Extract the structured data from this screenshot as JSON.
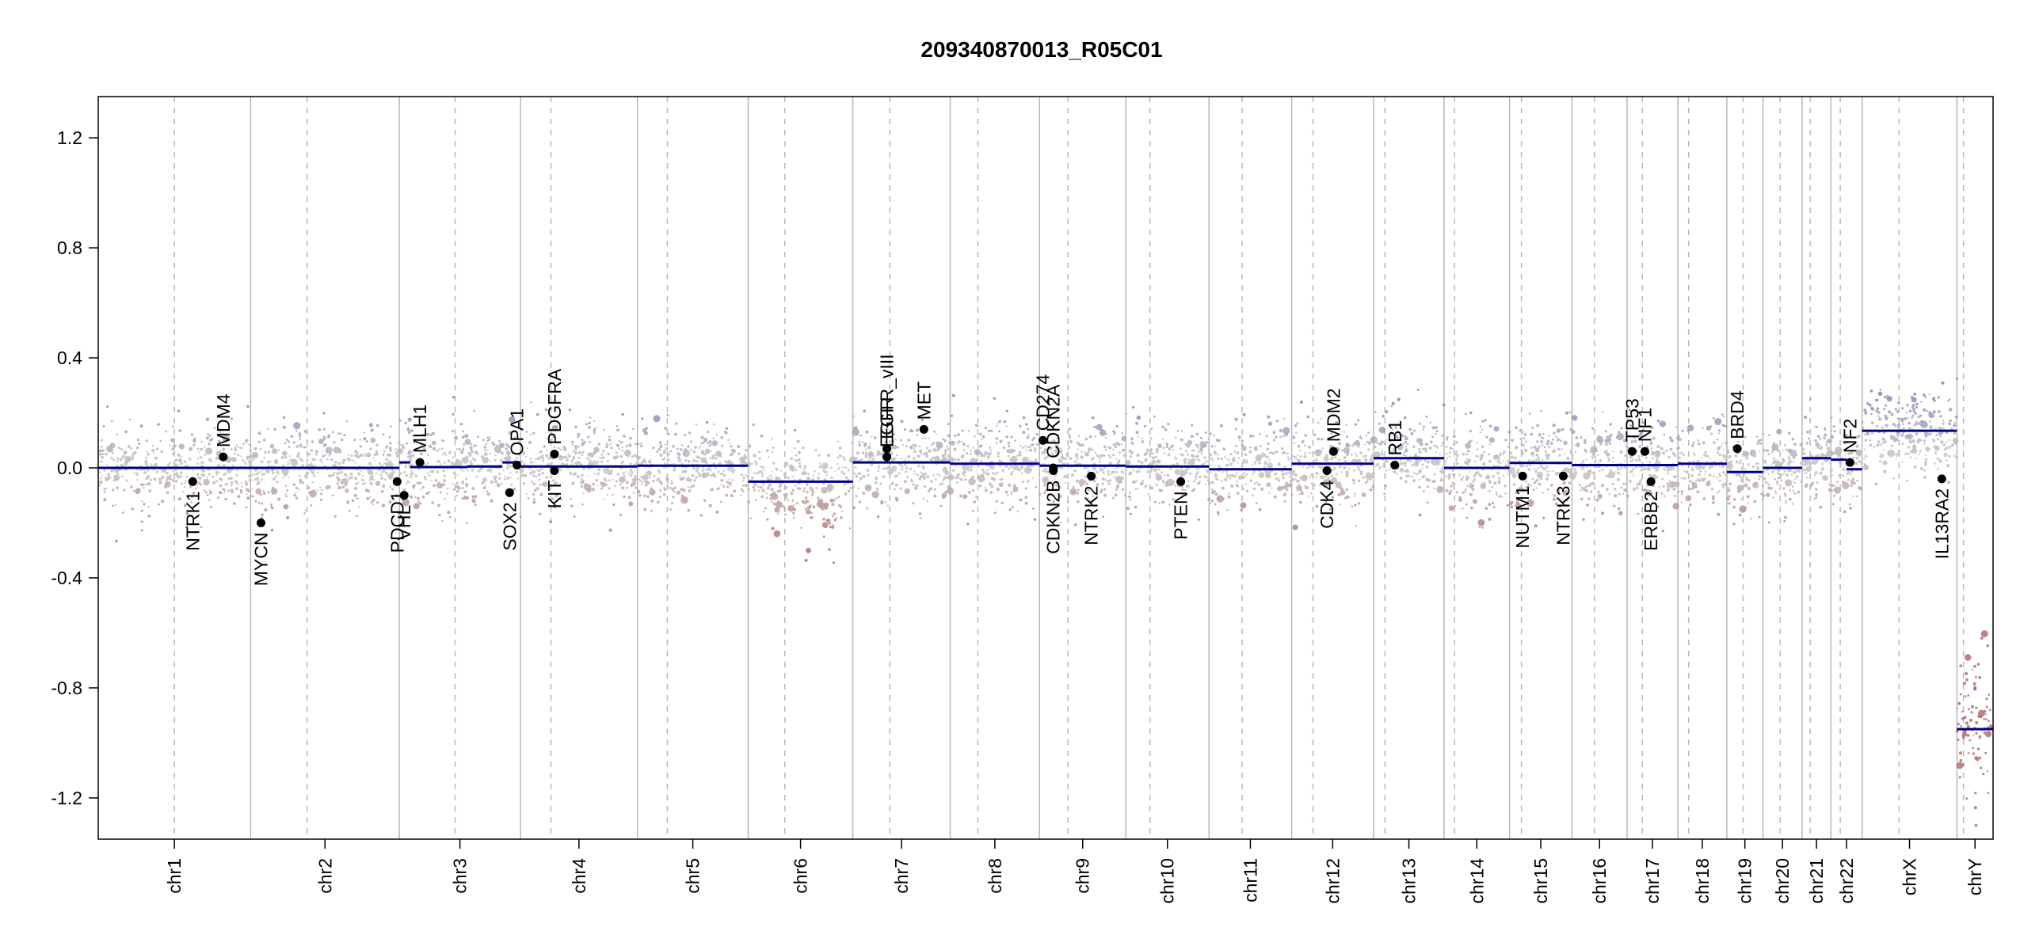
{
  "chart_data": {
    "type": "scatter",
    "title": "209340870013_R05C01",
    "xlabel": "",
    "ylabel": "",
    "ylim": [
      -1.35,
      1.35
    ],
    "y_ticks": [
      {
        "value": -1.2,
        "label": "-1.2"
      },
      {
        "value": -0.8,
        "label": "-0.8"
      },
      {
        "value": -0.4,
        "label": "-0.4"
      },
      {
        "value": 0.0,
        "label": "0.0"
      },
      {
        "value": 0.4,
        "label": "0.4"
      },
      {
        "value": 0.8,
        "label": "0.8"
      },
      {
        "value": 1.2,
        "label": "1.2"
      }
    ],
    "colors": {
      "gain": "#8080b0",
      "loss": "#b07070",
      "neutral": "#c8c8c8",
      "segment": "#00008b",
      "gene": "#000000",
      "chrom_line": "#b8b8b8",
      "centromere_line": "#b8b8b8"
    },
    "chromosomes": [
      {
        "name": "chr1",
        "size": 249,
        "centromere": 0.5,
        "segments": [
          {
            "from": 0,
            "to": 1,
            "value": 0.0
          }
        ],
        "noise_center": 0.0
      },
      {
        "name": "chr2",
        "size": 243,
        "centromere": 0.38,
        "segments": [
          {
            "from": 0,
            "to": 1,
            "value": 0.0
          }
        ],
        "noise_center": 0.0
      },
      {
        "name": "chr3",
        "size": 198,
        "centromere": 0.46,
        "segments": [
          {
            "from": 0,
            "to": 0.09,
            "value": 0.02
          },
          {
            "from": 0.09,
            "to": 0.56,
            "value": 0.003
          },
          {
            "from": 0.56,
            "to": 0.85,
            "value": 0.005
          },
          {
            "from": 0.85,
            "to": 1,
            "value": 0.02
          }
        ],
        "noise_center": 0.0
      },
      {
        "name": "chr4",
        "size": 191,
        "centromere": 0.26,
        "segments": [
          {
            "from": 0,
            "to": 1,
            "value": 0.005
          }
        ],
        "noise_center": 0.0
      },
      {
        "name": "chr5",
        "size": 181,
        "centromere": 0.27,
        "segments": [
          {
            "from": 0,
            "to": 1,
            "value": 0.008
          }
        ],
        "noise_center": 0.0
      },
      {
        "name": "chr6",
        "size": 171,
        "centromere": 0.35,
        "segments": [
          {
            "from": 0,
            "to": 1,
            "value": -0.05
          }
        ],
        "noise_center": -0.05
      },
      {
        "name": "chr7",
        "size": 159,
        "centromere": 0.38,
        "segments": [
          {
            "from": 0,
            "to": 1,
            "value": 0.02
          }
        ],
        "noise_center": 0.02
      },
      {
        "name": "chr8",
        "size": 146,
        "centromere": 0.31,
        "segments": [
          {
            "from": 0,
            "to": 1,
            "value": 0.015
          }
        ],
        "noise_center": 0.015
      },
      {
        "name": "chr9",
        "size": 141,
        "centromere": 0.33,
        "segments": [
          {
            "from": 0,
            "to": 1,
            "value": 0.008
          }
        ],
        "noise_center": 0.0
      },
      {
        "name": "chr10",
        "size": 136,
        "centromere": 0.29,
        "segments": [
          {
            "from": 0,
            "to": 1,
            "value": 0.005
          }
        ],
        "noise_center": 0.0
      },
      {
        "name": "chr11",
        "size": 135,
        "centromere": 0.4,
        "segments": [
          {
            "from": 0,
            "to": 1,
            "value": -0.005
          }
        ],
        "noise_center": 0.0
      },
      {
        "name": "chr12",
        "size": 134,
        "centromere": 0.26,
        "segments": [
          {
            "from": 0,
            "to": 1,
            "value": 0.015
          }
        ],
        "noise_center": 0.01
      },
      {
        "name": "chr13",
        "size": 115,
        "centromere": 0.16,
        "segments": [
          {
            "from": 0,
            "to": 1,
            "value": 0.035
          }
        ],
        "noise_center": 0.02
      },
      {
        "name": "chr14",
        "size": 107,
        "centromere": 0.16,
        "segments": [
          {
            "from": 0,
            "to": 1,
            "value": 0.0
          }
        ],
        "noise_center": 0.0
      },
      {
        "name": "chr15",
        "size": 102,
        "centromere": 0.19,
        "segments": [
          {
            "from": 0,
            "to": 1,
            "value": 0.018
          }
        ],
        "noise_center": 0.01
      },
      {
        "name": "chr16",
        "size": 90,
        "centromere": 0.41,
        "segments": [
          {
            "from": 0,
            "to": 1,
            "value": 0.01
          }
        ],
        "noise_center": 0.0
      },
      {
        "name": "chr17",
        "size": 83,
        "centromere": 0.3,
        "segments": [
          {
            "from": 0,
            "to": 1,
            "value": 0.01
          }
        ],
        "noise_center": 0.01
      },
      {
        "name": "chr18",
        "size": 80,
        "centromere": 0.22,
        "segments": [
          {
            "from": 0,
            "to": 1,
            "value": 0.015
          }
        ],
        "noise_center": 0.0
      },
      {
        "name": "chr19",
        "size": 59,
        "centromere": 0.45,
        "segments": [
          {
            "from": 0,
            "to": 1,
            "value": -0.015
          }
        ],
        "noise_center": -0.01
      },
      {
        "name": "chr20",
        "size": 64,
        "centromere": 0.44,
        "segments": [
          {
            "from": 0,
            "to": 1,
            "value": 0.0
          }
        ],
        "noise_center": 0.0
      },
      {
        "name": "chr21",
        "size": 47,
        "centromere": 0.28,
        "segments": [
          {
            "from": 0,
            "to": 1,
            "value": 0.035
          }
        ],
        "noise_center": 0.02
      },
      {
        "name": "chr22",
        "size": 51,
        "centromere": 0.3,
        "segments": [
          {
            "from": 0,
            "to": 0.5,
            "value": 0.03
          },
          {
            "from": 0.5,
            "to": 1,
            "value": -0.005
          }
        ],
        "noise_center": 0.0
      },
      {
        "name": "chrX",
        "size": 155,
        "centromere": 0.39,
        "segments": [
          {
            "from": 0,
            "to": 1,
            "value": 0.135
          }
        ],
        "noise_center": 0.14
      },
      {
        "name": "chrY",
        "size": 59,
        "centromere": 0.18,
        "segments": [
          {
            "from": 0,
            "to": 1,
            "value": -0.95
          }
        ],
        "noise_center": -0.95
      }
    ],
    "genes": [
      {
        "name": "NTRK1",
        "chrom": "chr1",
        "pos": 0.62,
        "value": -0.05,
        "label_side": "below"
      },
      {
        "name": "MDM4",
        "chrom": "chr1",
        "pos": 0.82,
        "value": 0.04,
        "label_side": "above"
      },
      {
        "name": "MYCN",
        "chrom": "chr2",
        "pos": 0.07,
        "value": -0.2,
        "label_side": "below"
      },
      {
        "name": "PDCD1",
        "chrom": "chr2",
        "pos": 0.985,
        "value": -0.05,
        "label_side": "below"
      },
      {
        "name": "VHL",
        "chrom": "chr3",
        "pos": 0.04,
        "value": -0.1,
        "label_side": "below"
      },
      {
        "name": "MLH1",
        "chrom": "chr3",
        "pos": 0.17,
        "value": 0.02,
        "label_side": "above"
      },
      {
        "name": "SOX2",
        "chrom": "chr3",
        "pos": 0.91,
        "value": -0.09,
        "label_side": "below"
      },
      {
        "name": "OPA1",
        "chrom": "chr3",
        "pos": 0.97,
        "value": 0.01,
        "label_side": "above"
      },
      {
        "name": "KIT",
        "chrom": "chr4",
        "pos": 0.29,
        "value": -0.01,
        "label_side": "below"
      },
      {
        "name": "PDGFRA",
        "chrom": "chr4",
        "pos": 0.29,
        "value": 0.05,
        "label_side": "above"
      },
      {
        "name": "EGFR_vIII",
        "chrom": "chr7",
        "pos": 0.35,
        "value": 0.07,
        "label_side": "above"
      },
      {
        "name": "EGFR",
        "chrom": "chr7",
        "pos": 0.35,
        "value": 0.04,
        "label_side": "above"
      },
      {
        "name": "MET",
        "chrom": "chr7",
        "pos": 0.73,
        "value": 0.14,
        "label_side": "above"
      },
      {
        "name": "CD274",
        "chrom": "chr9",
        "pos": 0.04,
        "value": 0.1,
        "label_side": "above"
      },
      {
        "name": "CDKN2A",
        "chrom": "chr9",
        "pos": 0.16,
        "value": 0.0,
        "label_side": "above"
      },
      {
        "name": "CDKN2B",
        "chrom": "chr9",
        "pos": 0.16,
        "value": -0.01,
        "label_side": "below"
      },
      {
        "name": "NTRK2",
        "chrom": "chr9",
        "pos": 0.6,
        "value": -0.03,
        "label_side": "below"
      },
      {
        "name": "PTEN",
        "chrom": "chr10",
        "pos": 0.66,
        "value": -0.05,
        "label_side": "below"
      },
      {
        "name": "CDK4",
        "chrom": "chr12",
        "pos": 0.43,
        "value": -0.01,
        "label_side": "below"
      },
      {
        "name": "MDM2",
        "chrom": "chr12",
        "pos": 0.51,
        "value": 0.06,
        "label_side": "above"
      },
      {
        "name": "RB1",
        "chrom": "chr13",
        "pos": 0.3,
        "value": 0.01,
        "label_side": "above"
      },
      {
        "name": "NUTM1",
        "chrom": "chr15",
        "pos": 0.21,
        "value": -0.03,
        "label_side": "below"
      },
      {
        "name": "NTRK3",
        "chrom": "chr15",
        "pos": 0.86,
        "value": -0.03,
        "label_side": "below"
      },
      {
        "name": "TP53",
        "chrom": "chr17",
        "pos": 0.1,
        "value": 0.06,
        "label_side": "above"
      },
      {
        "name": "NF1",
        "chrom": "chr17",
        "pos": 0.35,
        "value": 0.06,
        "label_side": "above"
      },
      {
        "name": "ERBB2",
        "chrom": "chr17",
        "pos": 0.47,
        "value": -0.05,
        "label_side": "below"
      },
      {
        "name": "BRD4",
        "chrom": "chr19",
        "pos": 0.29,
        "value": 0.07,
        "label_side": "above"
      },
      {
        "name": "NF2",
        "chrom": "chr22",
        "pos": 0.61,
        "value": 0.02,
        "label_side": "above"
      },
      {
        "name": "IL13RA2",
        "chrom": "chrX",
        "pos": 0.84,
        "value": -0.04,
        "label_side": "below"
      }
    ]
  }
}
